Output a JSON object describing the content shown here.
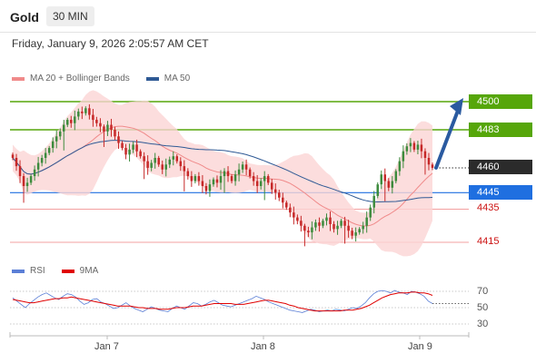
{
  "header": {
    "title": "Gold",
    "timeframe": "30 MIN"
  },
  "timestamp": "Friday, January 9, 2026 2:05:57 AM CET",
  "legend": {
    "ma20": {
      "label": "MA 20 + Bollinger Bands",
      "color": "#f08a8a"
    },
    "ma50": {
      "label": "MA 50",
      "color": "#2f5a95"
    }
  },
  "rsi_legend": {
    "rsi": {
      "label": "RSI",
      "color": "#5b7fd6"
    },
    "ma9": {
      "label": "9MA",
      "color": "#e00000"
    }
  },
  "price_tags": {
    "t4500": {
      "label": "4500",
      "color": "#56a60a"
    },
    "t4483": {
      "label": "4483",
      "color": "#56a60a"
    },
    "t4460": {
      "label": "4460",
      "color": "#2b2b2b"
    },
    "t4445": {
      "label": "4445",
      "color": "#1f6fe0"
    },
    "t4435": {
      "label": "4435",
      "color": "#cc1111"
    },
    "t4415": {
      "label": "4415",
      "color": "#cc1111"
    }
  },
  "rsi_axis": {
    "l70": "70",
    "l50": "50",
    "l30": "30"
  },
  "x_labels": {
    "jan7": "Jan 7",
    "jan8": "Jan 8",
    "jan9": "Jan 9"
  },
  "chart_data": {
    "type": "candlestick",
    "instrument": "Gold",
    "interval": "30 MIN",
    "price_axis_range": [
      4405,
      4515
    ],
    "resistance_levels": [
      4500,
      4483
    ],
    "current_price": 4460,
    "support_levels": [
      4445,
      4435,
      4415
    ],
    "projection": {
      "from": 4460,
      "to": 4500,
      "direction": "up"
    },
    "colors": {
      "bull": "#3d8b3d",
      "bear": "#c62828",
      "band_fill": "#fbd4d4",
      "ma20": "#f08a8a",
      "ma50": "#2f5a95"
    },
    "closes": [
      4466,
      4461,
      4455,
      4449,
      4451,
      4455,
      4459,
      4463,
      4466,
      4469,
      4472,
      4476,
      4479,
      4482,
      4486,
      4489,
      4487,
      4491,
      4494,
      4493,
      4496,
      4492,
      4489,
      4487,
      4485,
      4482,
      4486,
      4483,
      4479,
      4475,
      4472,
      4468,
      4471,
      4474,
      4470,
      4467,
      4464,
      4460,
      4463,
      4466,
      4462,
      4459,
      4462,
      4465,
      4467,
      4464,
      4461,
      4458,
      4455,
      4452,
      4455,
      4452,
      4449,
      4446,
      4450,
      4453,
      4451,
      4455,
      4458,
      4455,
      4452,
      4456,
      4459,
      4462,
      4459,
      4455,
      4452,
      4449,
      4452,
      4455,
      4451,
      4447,
      4445,
      4442,
      4439,
      4436,
      4433,
      4430,
      4428,
      4425,
      4422,
      4421,
      4424,
      4427,
      4425,
      4428,
      4430,
      4426,
      4423,
      4425,
      4428,
      4425,
      4422,
      4419,
      4421,
      4423,
      4425,
      4430,
      4436,
      4443,
      4450,
      4456,
      4452,
      4448,
      4452,
      4458,
      4464,
      4470,
      4473,
      4475,
      4471,
      4474,
      4470,
      4466,
      4462,
      4460
    ],
    "rsi": {
      "levels": [
        70,
        50,
        30
      ],
      "rsi_values": [
        62,
        58,
        54,
        50,
        55,
        59,
        63,
        66,
        68,
        65,
        62,
        60,
        64,
        67,
        66,
        63,
        58,
        54,
        56,
        60,
        61,
        57,
        55,
        52,
        49,
        50,
        53,
        56,
        52,
        49,
        47,
        45,
        48,
        51,
        49,
        47,
        46,
        45,
        49,
        52,
        50,
        48,
        52,
        56,
        55,
        52,
        54,
        57,
        59,
        56,
        53,
        52,
        51,
        53,
        55,
        57,
        59,
        61,
        64,
        62,
        60,
        57,
        55,
        53,
        51,
        49,
        47,
        46,
        45,
        44,
        46,
        48,
        47,
        45,
        46,
        47,
        46,
        48,
        47,
        46,
        48,
        50,
        49,
        52,
        56,
        62,
        67,
        70,
        71,
        70,
        68,
        71,
        69,
        68,
        66,
        70,
        69,
        67,
        64,
        58,
        55
      ],
      "ma9_values": [
        60,
        59,
        58,
        57,
        56,
        56,
        57,
        58,
        59,
        60,
        61,
        61,
        62,
        62,
        63,
        62,
        61,
        60,
        59,
        58,
        57,
        56,
        55,
        54,
        53,
        52,
        52,
        52,
        52,
        51,
        50,
        50,
        49,
        49,
        49,
        48,
        48,
        48,
        49,
        50,
        50,
        50,
        51,
        52,
        52,
        52,
        53,
        54,
        55,
        55,
        55,
        55,
        55,
        54,
        54,
        54,
        55,
        56,
        57,
        58,
        59,
        59,
        58,
        57,
        56,
        55,
        53,
        52,
        50,
        49,
        48,
        47,
        46,
        46,
        46,
        46,
        46,
        46,
        46,
        47,
        47,
        47,
        48,
        49,
        51,
        53,
        56,
        59,
        62,
        64,
        66,
        67,
        68,
        68,
        68,
        69,
        69,
        68,
        68,
        67,
        65
      ]
    }
  }
}
